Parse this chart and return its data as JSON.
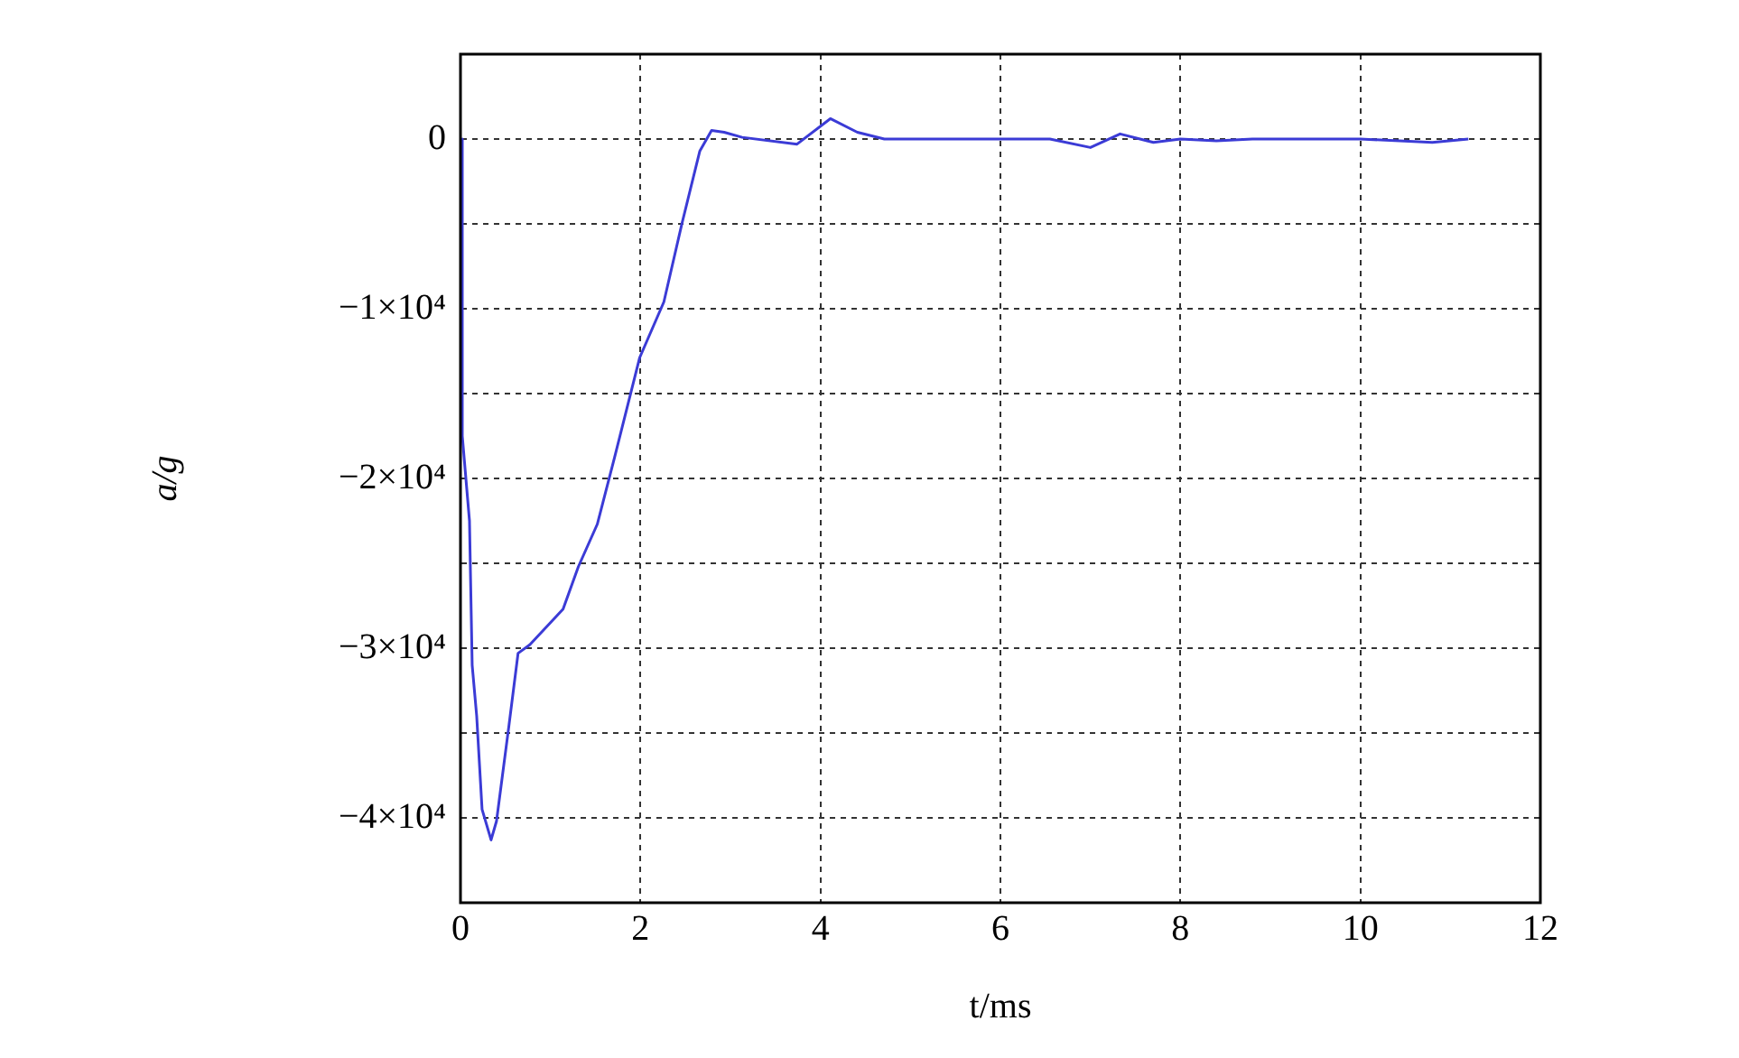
{
  "chart_data": {
    "type": "line",
    "xlabel": "t/ms",
    "ylabel": "a/g",
    "color": "#3b3bd6",
    "grid": true,
    "x": [
      0,
      0.02,
      0.1,
      0.13,
      0.18,
      0.24,
      0.34,
      0.4,
      0.54,
      0.64,
      0.77,
      1.14,
      1.31,
      1.52,
      1.72,
      1.99,
      2.26,
      2.46,
      2.66,
      2.79,
      2.93,
      3.13,
      3.74,
      4.11,
      4.41,
      4.71,
      5.0,
      6.55,
      7.0,
      7.33,
      7.7,
      8.0,
      8.4,
      8.8,
      10.0,
      10.8,
      11.2
    ],
    "values": [
      0,
      -17500,
      -22500,
      -31000,
      -34000,
      -39500,
      -41300,
      -40200,
      -34500,
      -30300,
      -29800,
      -27700,
      -25200,
      -22700,
      -18600,
      -12900,
      -9600,
      -5000,
      -700,
      500,
      400,
      100,
      -300,
      1200,
      400,
      0,
      0,
      0,
      -500,
      300,
      -200,
      0,
      -100,
      0,
      0,
      -200,
      0
    ],
    "xlim": [
      0,
      12
    ],
    "xticks": [
      0,
      2,
      4,
      6,
      8,
      10,
      12
    ],
    "ylim": [
      -45000,
      5000
    ],
    "yticks": [
      {
        "value": 0,
        "label": "0"
      },
      {
        "value": -5000,
        "label": null
      },
      {
        "value": -10000,
        "label": "−1×10⁴"
      },
      {
        "value": -15000,
        "label": null
      },
      {
        "value": -20000,
        "label": "−2×10⁴"
      },
      {
        "value": -25000,
        "label": null
      },
      {
        "value": -30000,
        "label": "−3×10⁴"
      },
      {
        "value": -35000,
        "label": null
      },
      {
        "value": -40000,
        "label": "−4×10⁴"
      }
    ]
  }
}
